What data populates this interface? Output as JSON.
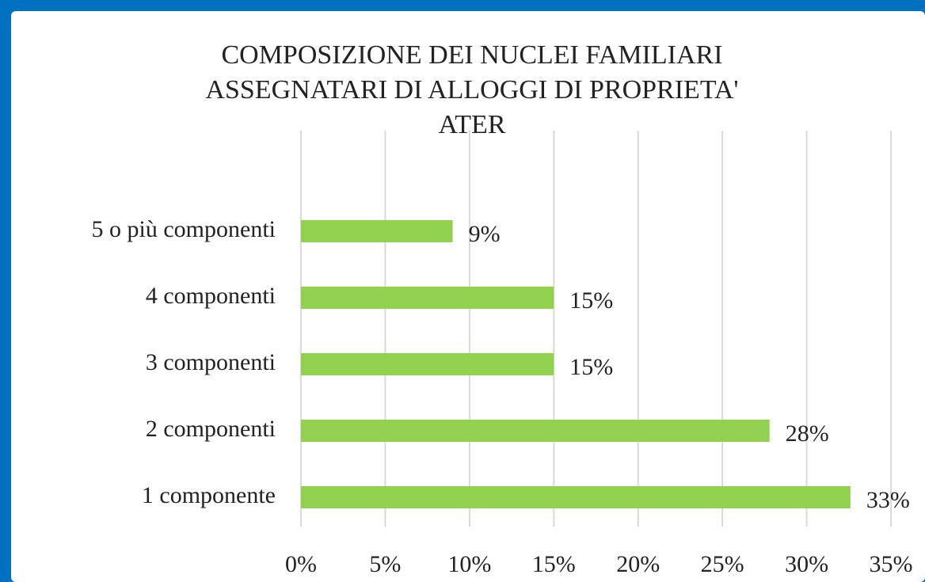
{
  "chart_data": {
    "type": "bar",
    "orientation": "horizontal",
    "title": [
      "COMPOSIZIONE  DEI NUCLEI  FAMILIARI",
      "ASSEGNATARI  DI ALLOGGI  DI PROPRIETA'",
      "ATER"
    ],
    "categories": [
      "1 componente",
      "2 componenti",
      "3 componenti",
      "4 componenti",
      "5 o più componenti"
    ],
    "values": [
      32.6,
      27.8,
      15,
      15,
      9
    ],
    "value_labels": [
      "33%",
      "28%",
      "15%",
      "15%",
      "9%"
    ],
    "color": "#92d050",
    "xlim": [
      0,
      35
    ],
    "xticks": [
      {
        "value": 0,
        "label": "0%"
      },
      {
        "value": 5,
        "label": "5%"
      },
      {
        "value": 10,
        "label": "10%"
      },
      {
        "value": 15,
        "label": "15%"
      },
      {
        "value": 20,
        "label": "20%"
      },
      {
        "value": 25,
        "label": "25%"
      },
      {
        "value": 30,
        "label": "30%"
      },
      {
        "value": 35,
        "label": "35%"
      }
    ],
    "grid": true
  }
}
